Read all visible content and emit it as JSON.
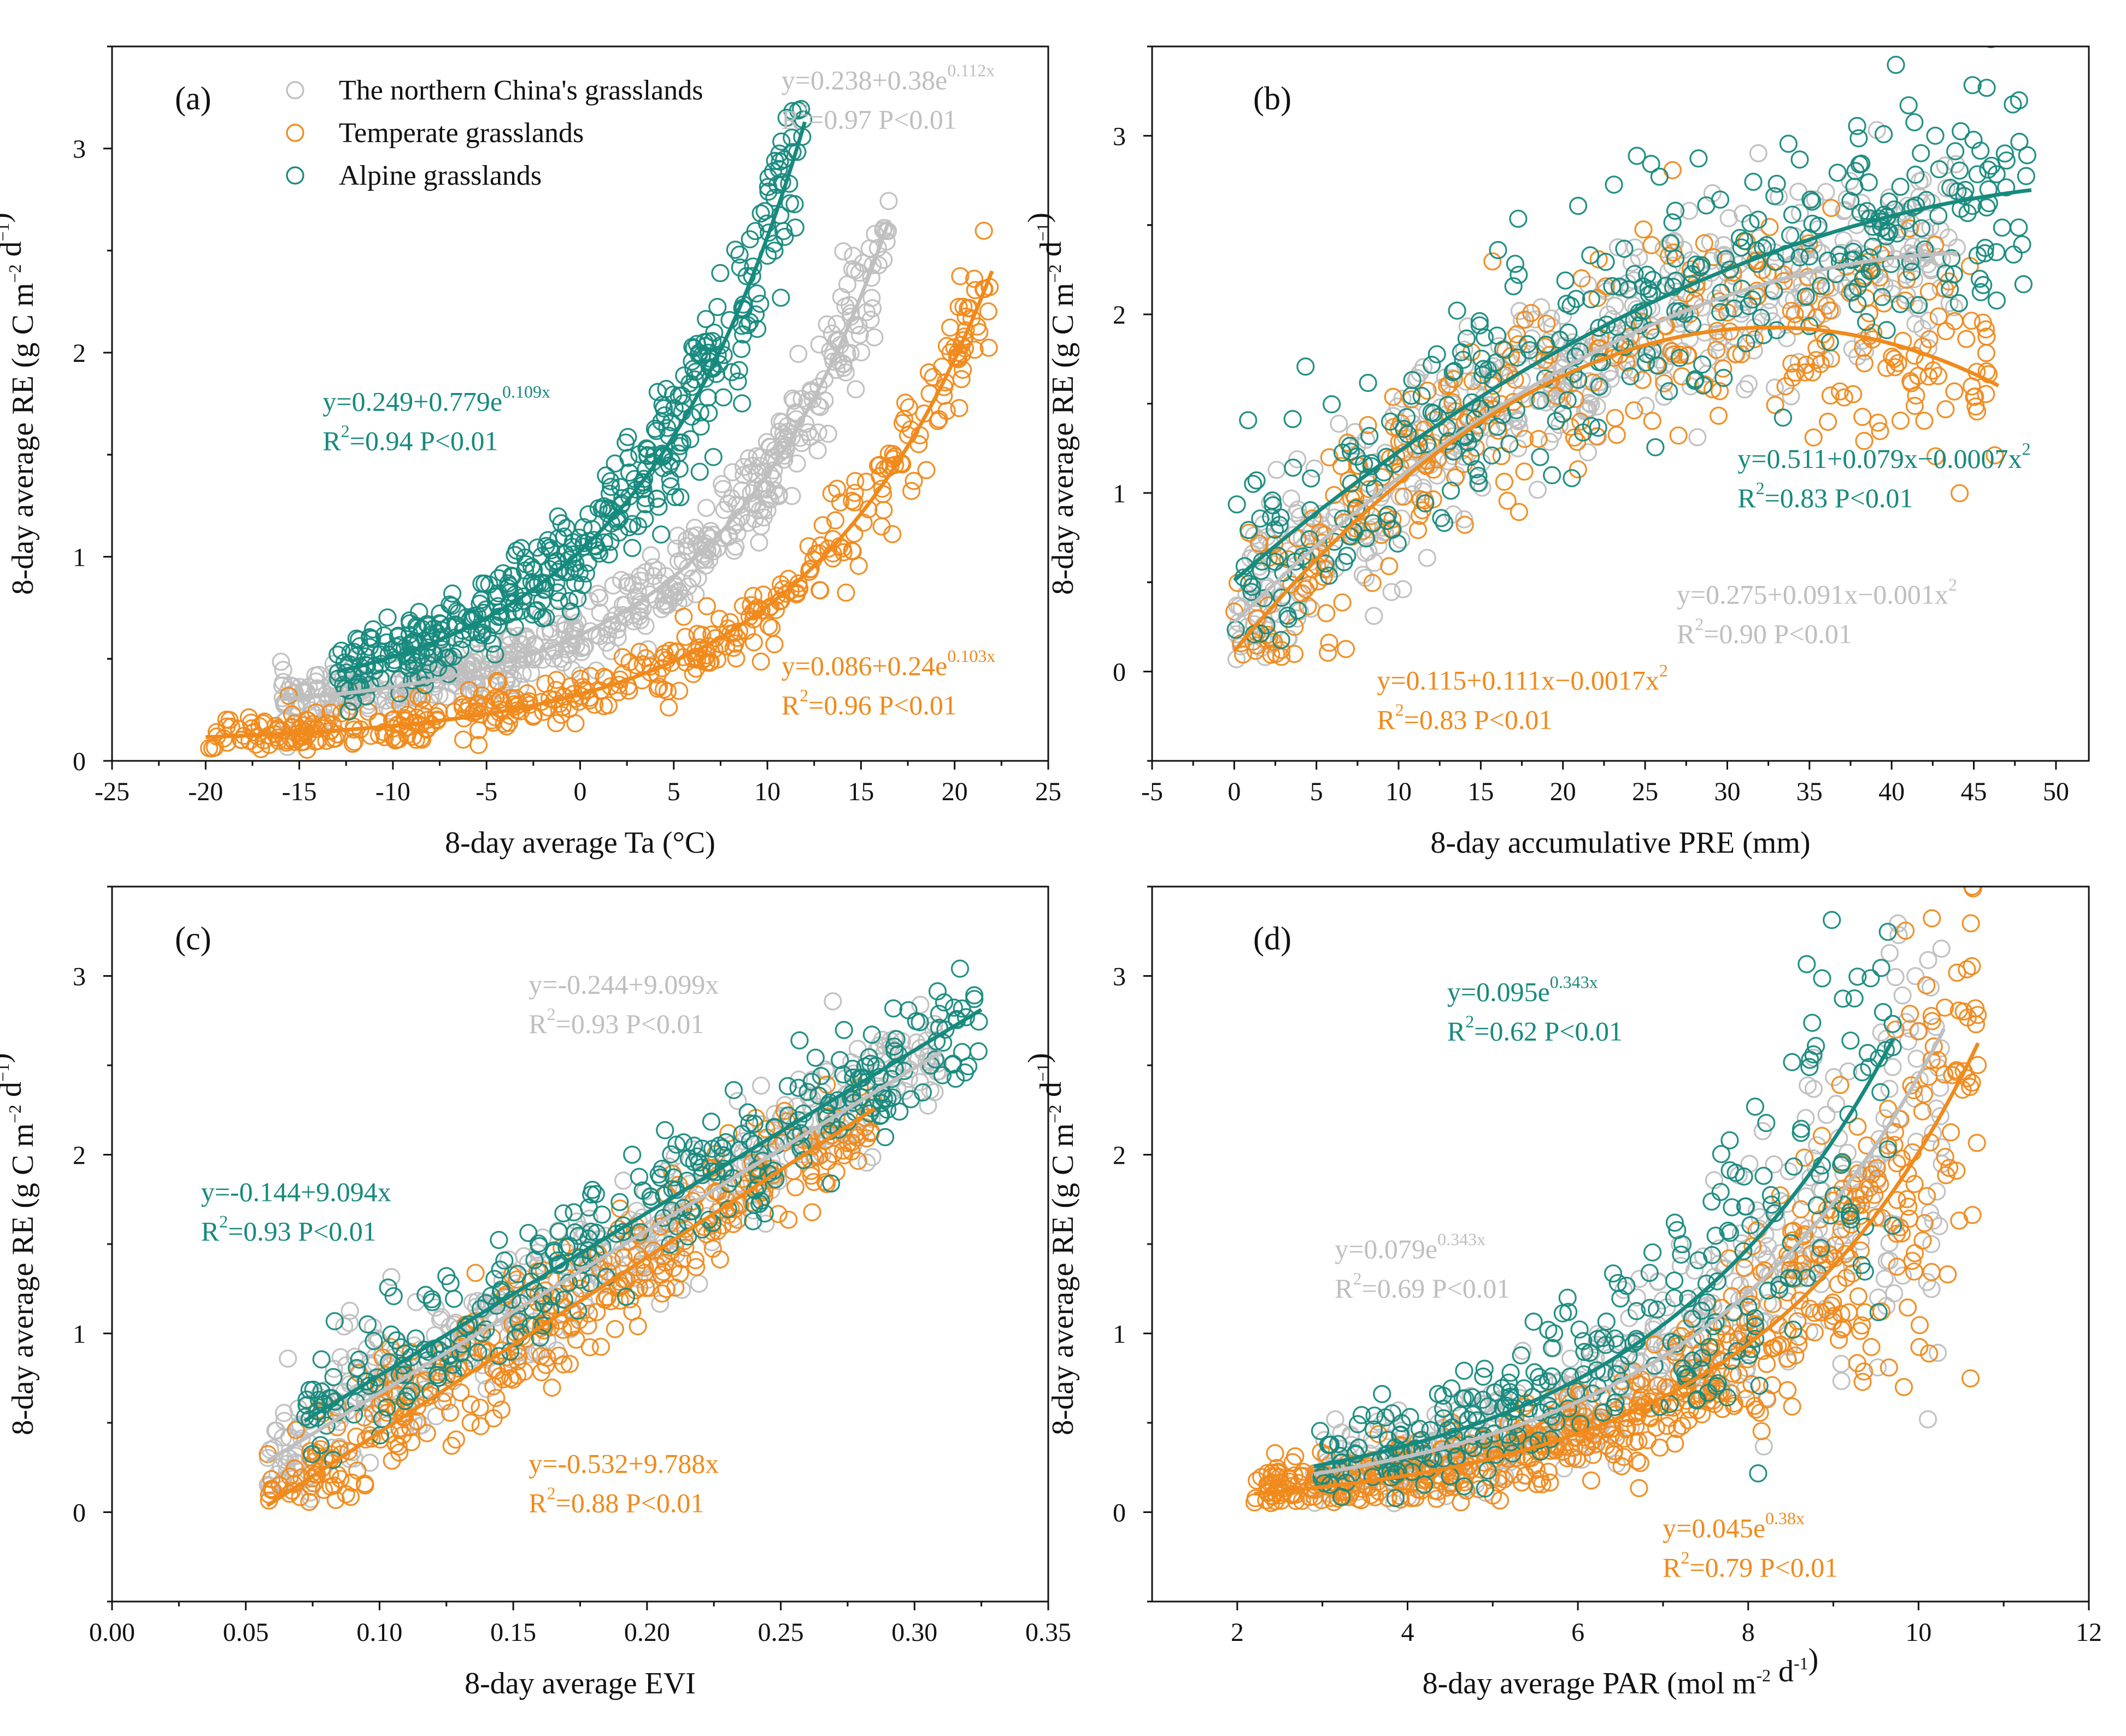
{
  "colors": {
    "northern": "#bfbfbf",
    "temperate": "#f08a1c",
    "alpine": "#178a7e",
    "axis": "#111111"
  },
  "legend": [
    {
      "label": "The northern China's grasslands",
      "color": "#bfbfbf"
    },
    {
      "label": "Temperate grasslands",
      "color": "#f08a1c"
    },
    {
      "label": "Alpine grasslands",
      "color": "#178a7e"
    }
  ],
  "chart_data": [
    {
      "panel": "(a)",
      "type": "scatter",
      "xlabel": "8-day average Ta (°C)",
      "ylabel": "8-day average RE (g C m−2 d−1)",
      "xlim": [
        -25,
        25
      ],
      "ylim": [
        0,
        3.5
      ],
      "xticks": [
        -25,
        -20,
        -15,
        -10,
        -5,
        0,
        5,
        10,
        15,
        20,
        25
      ],
      "yticks": [
        0,
        1,
        2,
        3
      ],
      "series": [
        {
          "name": "The northern China's grasslands",
          "color": "#bfbfbf",
          "model": "exp",
          "a": 0.238,
          "b": 0.38,
          "c": 0.112,
          "x_range": [
            -16,
            16.5
          ],
          "noise": 0.09,
          "eq": {
            "main": "y=0.238+0.38e",
            "exp": "0.112x",
            "r2": "=0.97  P<0.01"
          }
        },
        {
          "name": "Temperate grasslands",
          "color": "#f08a1c",
          "model": "exp",
          "a": 0.086,
          "b": 0.24,
          "c": 0.103,
          "x_range": [
            -20,
            22
          ],
          "noise": 0.09,
          "eq": {
            "main": "y=0.086+0.24e",
            "exp": "0.103x",
            "r2": "=0.96  P<0.01"
          }
        },
        {
          "name": "Alpine grasslands",
          "color": "#178a7e",
          "model": "exp",
          "a": 0.249,
          "b": 0.779,
          "c": 0.109,
          "x_range": [
            -13,
            12
          ],
          "noise": 0.11,
          "eq": {
            "main": "y=0.249+0.779e",
            "exp": "0.109x",
            "r2": "=0.94  P<0.01"
          }
        }
      ]
    },
    {
      "panel": "(b)",
      "type": "scatter",
      "xlabel": "8-day accumulative PRE (mm)",
      "ylabel": "8-day average RE (g C m−2 d−1)",
      "xlim": [
        -5,
        52
      ],
      "ylim": [
        -0.5,
        3.5
      ],
      "xticks": [
        -5,
        0,
        5,
        10,
        15,
        20,
        25,
        30,
        35,
        40,
        45,
        50
      ],
      "yticks": [
        0,
        1,
        2,
        3
      ],
      "series": [
        {
          "name": "The northern China's grasslands",
          "color": "#bfbfbf",
          "model": "quad",
          "a": 0.275,
          "b": 0.091,
          "c": -0.001,
          "x_range": [
            0,
            44
          ],
          "noise": 0.25,
          "eq": {
            "main": "y=0.275+0.091x−0.001x",
            "exp": "2",
            "r2": "=0.90  P<0.01"
          }
        },
        {
          "name": "Temperate grasslands",
          "color": "#f08a1c",
          "model": "quad",
          "a": 0.115,
          "b": 0.111,
          "c": -0.0017,
          "x_range": [
            0,
            46.5
          ],
          "noise": 0.3,
          "eq": {
            "main": "y=0.115+0.111x−0.0017x",
            "exp": "2",
            "r2": "=0.83  P<0.01"
          }
        },
        {
          "name": "Alpine grasslands",
          "color": "#178a7e",
          "model": "quad",
          "a": 0.511,
          "b": 0.079,
          "c": -0.0007,
          "x_range": [
            0,
            48.5
          ],
          "noise": 0.35,
          "eq": {
            "main": "y=0.511+0.079x−0.0007x",
            "exp": "2",
            "r2": "=0.83  P<0.01"
          }
        }
      ]
    },
    {
      "panel": "(c)",
      "type": "scatter",
      "xlabel": "8-day average EVI",
      "ylabel": "8-day average RE (g C m−2 d−1)",
      "xlim": [
        0,
        0.35
      ],
      "ylim": [
        -0.5,
        3.5
      ],
      "xticks": [
        0.0,
        0.05,
        0.1,
        0.15,
        0.2,
        0.25,
        0.3,
        0.35
      ],
      "xtick_labels": [
        "0.00",
        "0.05",
        "0.10",
        "0.15",
        "0.20",
        "0.25",
        "0.30",
        "0.35"
      ],
      "yticks": [
        0,
        1,
        2,
        3
      ],
      "series": [
        {
          "name": "The northern China's grasslands",
          "color": "#bfbfbf",
          "model": "lin",
          "a": -0.244,
          "b": 9.099,
          "x_range": [
            0.058,
            0.31
          ],
          "noise": 0.17,
          "eq": {
            "main": "y=-0.244+9.099x",
            "exp": "",
            "r2": "=0.93  P<0.01"
          }
        },
        {
          "name": "Temperate grasslands",
          "color": "#f08a1c",
          "model": "lin",
          "a": -0.532,
          "b": 9.788,
          "x_range": [
            0.058,
            0.285
          ],
          "noise": 0.17,
          "eq": {
            "main": "y=-0.532+9.788x",
            "exp": "",
            "r2": "=0.88  P<0.01"
          }
        },
        {
          "name": "Alpine grasslands",
          "color": "#178a7e",
          "model": "lin",
          "a": -0.144,
          "b": 9.094,
          "x_range": [
            0.072,
            0.325
          ],
          "noise": 0.17,
          "eq": {
            "main": "y=-0.144+9.094x",
            "exp": "",
            "r2": "=0.93  P<0.01"
          }
        }
      ]
    },
    {
      "panel": "(d)",
      "type": "scatter",
      "xlabel": "8-day average PAR (mol m-2 d-1)",
      "ylabel": "8-day average RE (g C m−2 d−1)",
      "xlim": [
        1,
        12
      ],
      "ylim": [
        -0.5,
        3.5
      ],
      "xticks": [
        2,
        4,
        6,
        8,
        10,
        12
      ],
      "yticks": [
        0,
        1,
        2,
        3
      ],
      "series": [
        {
          "name": "The northern China's grasslands",
          "color": "#bfbfbf",
          "model": "pexp",
          "a": 0,
          "b": 0.079,
          "c": 0.343,
          "x_range": [
            2.9,
            10.3
          ],
          "noise": 0.3,
          "eq": {
            "main": "y=0.079e",
            "exp": "0.343x",
            "r2": "=0.69  P<0.01"
          }
        },
        {
          "name": "Temperate grasslands",
          "color": "#f08a1c",
          "model": "pexp",
          "a": 0,
          "b": 0.045,
          "c": 0.38,
          "x_range": [
            2.2,
            10.7
          ],
          "noise": 0.3,
          "eq": {
            "main": "y=0.045e",
            "exp": "0.38x",
            "r2": "=0.79  P<0.01"
          }
        },
        {
          "name": "Alpine grasslands",
          "color": "#178a7e",
          "model": "pexp",
          "a": 0,
          "b": 0.095,
          "c": 0.343,
          "x_range": [
            2.9,
            9.7
          ],
          "noise": 0.35,
          "eq": {
            "main": "y=0.095e",
            "exp": "0.343x",
            "r2": "=0.62  P<0.01"
          }
        }
      ]
    }
  ]
}
